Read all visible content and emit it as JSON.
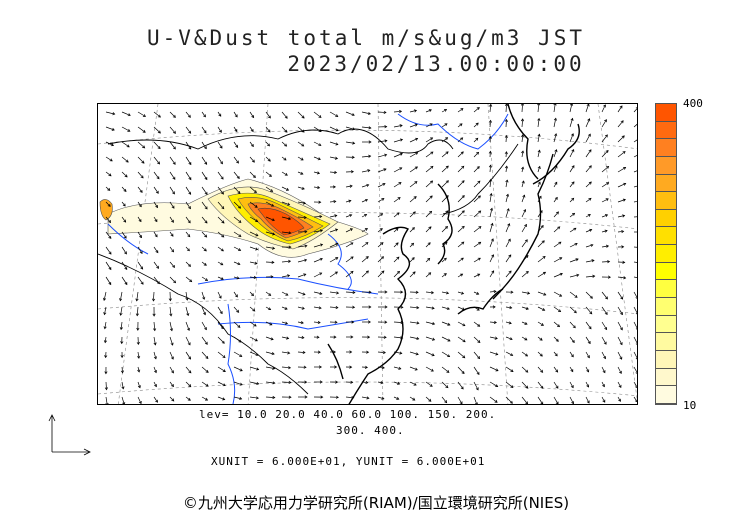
{
  "title_line1": "U-V&Dust total m/s&ug/m3 JST",
  "title_line2": "2023/02/13.00:00:00",
  "colorbar": {
    "max_label": "400",
    "min_label": "10",
    "colors": [
      "#ff5500",
      "#ff6a10",
      "#ff8020",
      "#ff9a28",
      "#ffaa20",
      "#ffbe10",
      "#ffd000",
      "#ffe000",
      "#ffee00",
      "#ffff00",
      "#ffff40",
      "#ffff70",
      "#ffff90",
      "#fffaa0",
      "#fff6b8",
      "#fff8cc",
      "#fffbe0"
    ]
  },
  "levels": {
    "line1": "lev= 10.0 20.0 40.0 60.0 100. 150. 200.",
    "line2": "300. 400."
  },
  "units_text": "XUNIT = 6.000E+01, YUNIT = 6.000E+01",
  "copyright": "©九州大学応用力学研究所(RIAM)/国立環境研究所(NIES)"
}
